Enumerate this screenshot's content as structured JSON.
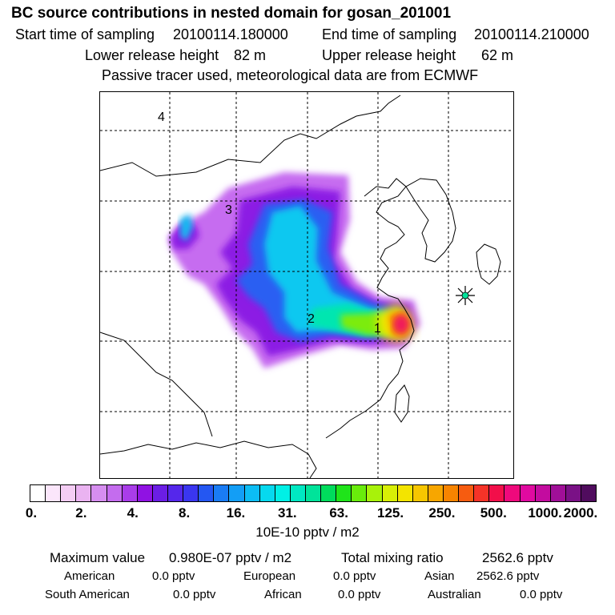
{
  "header": {
    "title": "BC  source contributions in nested domain for gosan_201001",
    "start_label": "Start time of sampling",
    "start_value": "20100114.180000",
    "end_label": "End time of sampling",
    "end_value": "20100114.210000",
    "lower_label": "Lower release height",
    "lower_value": "82 m",
    "upper_label": "Upper release height",
    "upper_value": "62 m",
    "tracer_note": "Passive tracer used, meteorological data are from ECMWF"
  },
  "map": {
    "region_labels": [
      "4",
      "3",
      "2",
      "1"
    ],
    "receptor_marker": "receptor-star-icon"
  },
  "colorbar": {
    "colors": [
      "#ffffff",
      "#fbe6fb",
      "#f4cdf4",
      "#eab3f1",
      "#d68ef0",
      "#c46cee",
      "#a93de9",
      "#9012e3",
      "#6b1ee5",
      "#5527eb",
      "#3a36f0",
      "#2457f2",
      "#1a7cf4",
      "#139ef6",
      "#0cbdf4",
      "#06d9ef",
      "#00f0e6",
      "#00e8c2",
      "#00e39a",
      "#00dc5c",
      "#1fe41a",
      "#69ec0c",
      "#a8f20a",
      "#d8ef06",
      "#f3e400",
      "#f7c600",
      "#f7a600",
      "#f78400",
      "#f65c10",
      "#f53328",
      "#f20f4a",
      "#ef097c",
      "#e00aa0",
      "#c30c9f",
      "#a00f98",
      "#7a1186",
      "#500c5e"
    ],
    "tick_labels": [
      "0.",
      "2.",
      "4.",
      "8.",
      "16.",
      "31.",
      "63.",
      "125.",
      "250.",
      "500.",
      "1000.",
      "2000."
    ],
    "units": "10E-10 pptv / m2"
  },
  "stats": {
    "max_label": "Maximum value",
    "max_value": "0.980E-07 pptv / m2",
    "total_label": "Total mixing ratio",
    "total_value": "2562.6 pptv",
    "regions": [
      {
        "name": "American",
        "value": "0.0 pptv"
      },
      {
        "name": "European",
        "value": "0.0 pptv"
      },
      {
        "name": "Asian",
        "value": "2562.6 pptv"
      },
      {
        "name": "South American",
        "value": "0.0 pptv"
      },
      {
        "name": "African",
        "value": "0.0 pptv"
      },
      {
        "name": "Australian",
        "value": "0.0 pptv"
      }
    ]
  }
}
